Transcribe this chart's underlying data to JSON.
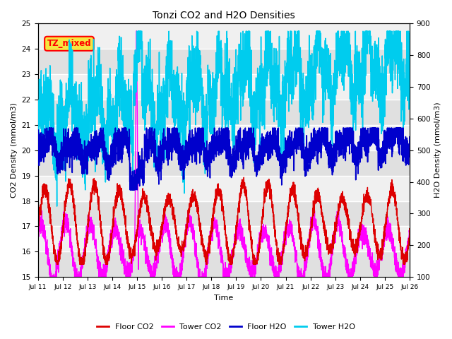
{
  "title": "Tonzi CO2 and H2O Densities",
  "xlabel": "Time",
  "ylabel_left": "CO2 Density (mmol/m3)",
  "ylabel_right": "H2O Density (mmol/m3)",
  "ylim_left": [
    15.0,
    25.0
  ],
  "ylim_right": [
    100,
    900
  ],
  "yticks_left": [
    15.0,
    16.0,
    17.0,
    18.0,
    19.0,
    20.0,
    21.0,
    22.0,
    23.0,
    24.0,
    25.0
  ],
  "yticks_right": [
    100,
    200,
    300,
    400,
    500,
    600,
    700,
    800,
    900
  ],
  "xticklabels": [
    "Jul 11",
    "Jul 12",
    "Jul 13",
    "Jul 14",
    "Jul 15",
    "Jul 16",
    "Jul 17",
    "Jul 18",
    "Jul 19",
    "Jul 20",
    "Jul 21",
    "Jul 22",
    "Jul 23",
    "Jul 24",
    "Jul 25",
    "Jul 26"
  ],
  "annotation": "TZ_mixed",
  "color_floor_co2": "#dd0000",
  "color_tower_co2": "#ff00ff",
  "color_floor_h2o": "#0000cc",
  "color_tower_h2o": "#00ccee",
  "band_light": "#f0f0f0",
  "band_dark": "#e0e0e0",
  "n_points": 3600,
  "legend_labels": [
    "Floor CO2",
    "Tower CO2",
    "Floor H2O",
    "Tower H2O"
  ]
}
